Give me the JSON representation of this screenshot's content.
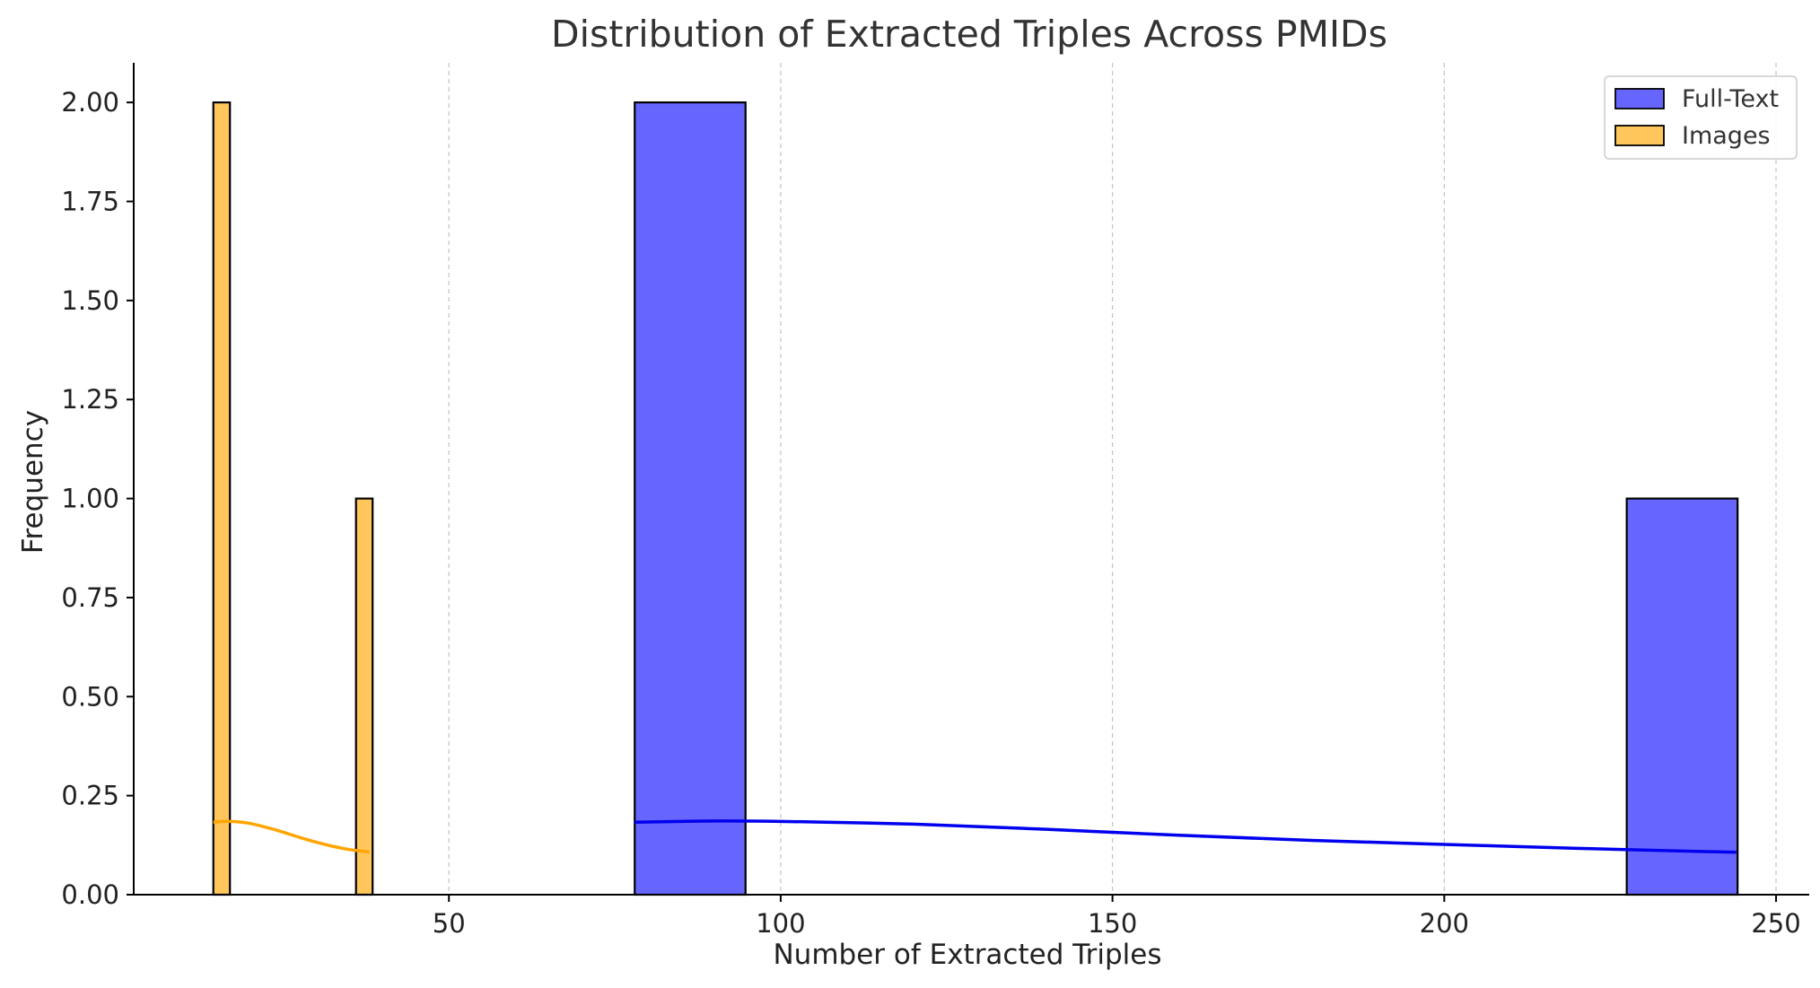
{
  "chart_data": {
    "type": "bar",
    "title": "Distribution of Extracted Triples Across PMIDs",
    "xlabel": "Number of Extracted Triples",
    "ylabel": "Frequency",
    "xlim": [
      2.5,
      255
    ],
    "ylim": [
      0,
      2.1
    ],
    "x_ticks": [
      50,
      100,
      150,
      200,
      250
    ],
    "x_tick_labels": [
      "50",
      "100",
      "150",
      "200",
      "250"
    ],
    "y_ticks": [
      0,
      0.25,
      0.5,
      0.75,
      1.0,
      1.25,
      1.5,
      1.75,
      2.0
    ],
    "y_tick_labels": [
      "0.00",
      "0.25",
      "0.50",
      "0.75",
      "1.00",
      "1.25",
      "1.50",
      "1.75",
      "2.00"
    ],
    "grid": "vertical dashed",
    "legend_position": "top-right",
    "series": [
      {
        "name": "Full-Text",
        "color": "#6666ff",
        "kde_color": "#0000ee",
        "bins": [
          {
            "x0": 78,
            "x1": 94.7,
            "count": 2
          },
          {
            "x0": 227.5,
            "x1": 244.2,
            "count": 1
          }
        ],
        "kde": [
          {
            "x": 78,
            "y": 0.183
          },
          {
            "x": 90,
            "y": 0.186
          },
          {
            "x": 100,
            "y": 0.185
          },
          {
            "x": 120,
            "y": 0.178
          },
          {
            "x": 140,
            "y": 0.165
          },
          {
            "x": 160,
            "y": 0.15
          },
          {
            "x": 180,
            "y": 0.137
          },
          {
            "x": 200,
            "y": 0.127
          },
          {
            "x": 220,
            "y": 0.117
          },
          {
            "x": 244,
            "y": 0.107
          }
        ]
      },
      {
        "name": "Images",
        "color": "#ffc65c",
        "kde_color": "#ffa500",
        "bins": [
          {
            "x0": 14.5,
            "x1": 17,
            "count": 2
          },
          {
            "x0": 36,
            "x1": 38.5,
            "count": 1
          }
        ],
        "kde": [
          {
            "x": 14.5,
            "y": 0.183
          },
          {
            "x": 17,
            "y": 0.185
          },
          {
            "x": 20,
            "y": 0.18
          },
          {
            "x": 24,
            "y": 0.163
          },
          {
            "x": 28,
            "y": 0.142
          },
          {
            "x": 32,
            "y": 0.124
          },
          {
            "x": 35,
            "y": 0.114
          },
          {
            "x": 38,
            "y": 0.108
          }
        ]
      }
    ]
  }
}
